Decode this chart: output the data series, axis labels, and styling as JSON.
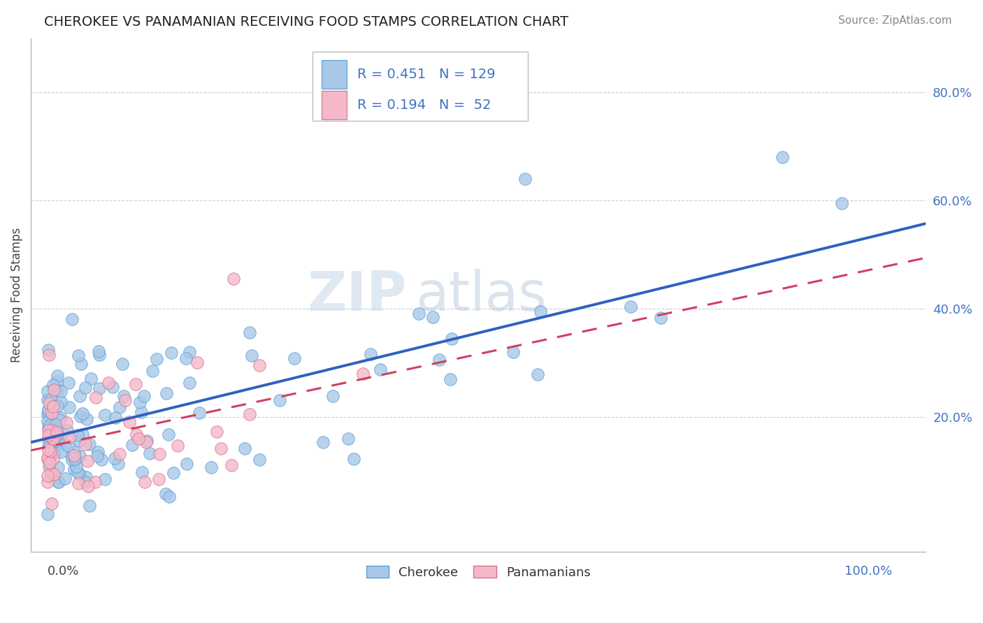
{
  "title": "CHEROKEE VS PANAMANIAN RECEIVING FOOD STAMPS CORRELATION CHART",
  "source": "Source: ZipAtlas.com",
  "ylabel": "Receiving Food Stamps",
  "ytick_vals": [
    0.2,
    0.4,
    0.6,
    0.8
  ],
  "ytick_labels": [
    "20.0%",
    "40.0%",
    "60.0%",
    "80.0%"
  ],
  "xlim": [
    -0.02,
    1.04
  ],
  "ylim": [
    -0.05,
    0.9
  ],
  "cherokee_color": "#a8c8e8",
  "cherokee_edge": "#5a9fd4",
  "panamanian_color": "#f4b8c8",
  "panamanian_edge": "#d87090",
  "cherokee_line_color": "#3060c0",
  "panamanian_line_color": "#d04060",
  "legend_R_cherokee": "R = 0.451",
  "legend_N_cherokee": "N = 129",
  "legend_R_panamanian": "R = 0.194",
  "legend_N_panamanian": "N =  52",
  "watermark_zip": "ZIP",
  "watermark_atlas": "atlas",
  "title_fontsize": 14,
  "source_fontsize": 11,
  "ylabel_fontsize": 12,
  "ytick_fontsize": 13,
  "legend_fontsize": 14
}
